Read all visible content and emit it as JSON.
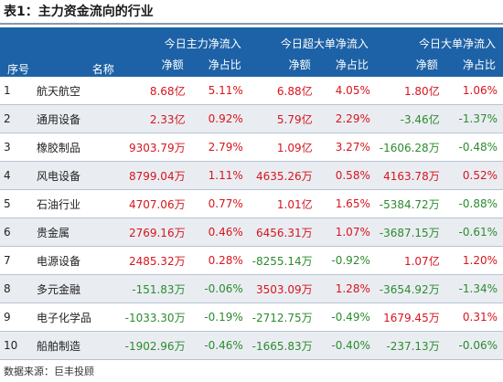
{
  "title": "表1：主力资金流向的行业",
  "header": {
    "index": "序号",
    "name": "名称",
    "groups": [
      "今日主力净流入",
      "今日超大单净流入",
      "今日大单净流入"
    ],
    "sub": [
      "净额",
      "净占比",
      "净额",
      "净占比",
      "净额",
      "净占比"
    ]
  },
  "rows": [
    {
      "index": "1",
      "name": "航天航空",
      "values": [
        "8.68亿",
        "5.11%",
        "6.88亿",
        "4.05%",
        "1.80亿",
        "1.06%"
      ]
    },
    {
      "index": "2",
      "name": "通用设备",
      "values": [
        "2.33亿",
        "0.92%",
        "5.79亿",
        "2.29%",
        "-3.46亿",
        "-1.37%"
      ]
    },
    {
      "index": "3",
      "name": "橡胶制品",
      "values": [
        "9303.79万",
        "2.79%",
        "1.09亿",
        "3.27%",
        "-1606.28万",
        "-0.48%"
      ]
    },
    {
      "index": "4",
      "name": "风电设备",
      "values": [
        "8799.04万",
        "1.11%",
        "4635.26万",
        "0.58%",
        "4163.78万",
        "0.52%"
      ]
    },
    {
      "index": "5",
      "name": "石油行业",
      "values": [
        "4707.06万",
        "0.77%",
        "1.01亿",
        "1.65%",
        "-5384.72万",
        "-0.88%"
      ]
    },
    {
      "index": "6",
      "name": "贵金属",
      "values": [
        "2769.16万",
        "0.46%",
        "6456.31万",
        "1.07%",
        "-3687.15万",
        "-0.61%"
      ]
    },
    {
      "index": "7",
      "name": "电源设备",
      "values": [
        "2485.32万",
        "0.28%",
        "-8255.14万",
        "-0.92%",
        "1.07亿",
        "1.20%"
      ]
    },
    {
      "index": "8",
      "name": "多元金融",
      "values": [
        "-151.83万",
        "-0.06%",
        "3503.09万",
        "1.28%",
        "-3654.92万",
        "-1.34%"
      ]
    },
    {
      "index": "9",
      "name": "电子化学品",
      "values": [
        "-1033.30万",
        "-0.19%",
        "-2712.75万",
        "-0.49%",
        "1679.45万",
        "0.31%"
      ]
    },
    {
      "index": "10",
      "name": "船舶制造",
      "values": [
        "-1902.96万",
        "-0.46%",
        "-1665.83万",
        "-0.40%",
        "-237.13万",
        "-0.06%"
      ]
    }
  ],
  "source": "数据来源：巨丰投顾",
  "colors": {
    "header_bg": "#1d62a6",
    "positive": "#d8141c",
    "negative": "#2d8a2d",
    "stripe": "#e9edf2"
  }
}
